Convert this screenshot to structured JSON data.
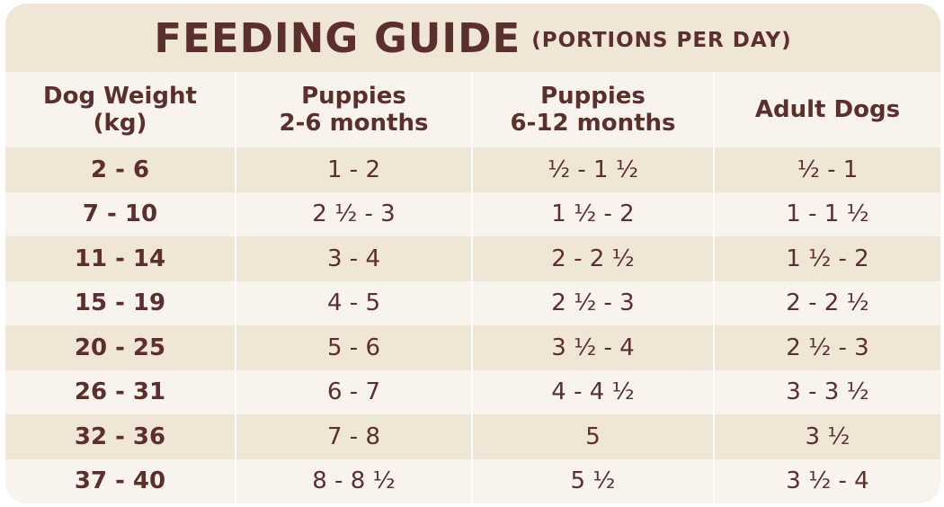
{
  "title": {
    "main": "FEEDING GUIDE",
    "sub": "(PORTIONS PER DAY)"
  },
  "headers": [
    {
      "line1": "Dog Weight",
      "line2": "(kg)"
    },
    {
      "line1": "Puppies",
      "line2": "2-6 months"
    },
    {
      "line1": "Puppies",
      "line2": "6-12 months"
    },
    {
      "line1": "Adult Dogs",
      "line2": ""
    }
  ],
  "rows": [
    [
      "2 - 6",
      "1 - 2",
      "½ - 1 ½",
      "½ - 1"
    ],
    [
      "7 - 10",
      "2 ½ - 3",
      "1 ½ - 2",
      "1 - 1 ½"
    ],
    [
      "11 - 14",
      "3 - 4",
      "2 - 2 ½",
      "1 ½ - 2"
    ],
    [
      "15 - 19",
      "4 - 5",
      "2 ½ - 3",
      "2 - 2 ½"
    ],
    [
      "20 - 25",
      "5 - 6",
      "3 ½ - 4",
      "2 ½ - 3"
    ],
    [
      "26 - 31",
      "6 - 7",
      "4 - 4 ½",
      "3 - 3 ½"
    ],
    [
      "32 - 36",
      "7 - 8",
      "5",
      "3 ½"
    ],
    [
      "37 - 40",
      "8 - 8 ½",
      "5 ½",
      "3 ½ - 4"
    ]
  ],
  "colors": {
    "text": "#5a2f2c",
    "band": "#efe6d6",
    "light": "#f8f3ec"
  }
}
